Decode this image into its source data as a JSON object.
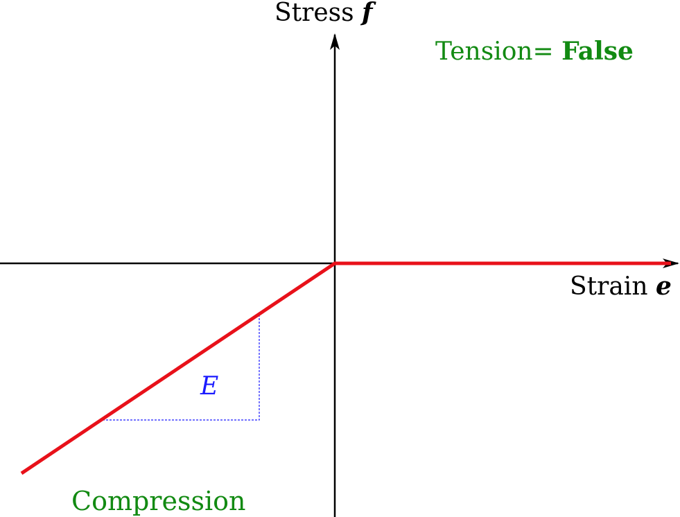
{
  "axes": {
    "y_title": "Stress",
    "y_symbol": "f",
    "x_title": "Strain",
    "x_symbol": "e"
  },
  "tension_flag": {
    "label": "Tension=",
    "value": "False"
  },
  "region_label": "Compression",
  "slope_label": "E",
  "colors": {
    "curve": "#e8111a",
    "axes": "#000000",
    "annotation_green": "#128a12",
    "slope_triangle": "#1a1aff"
  }
}
